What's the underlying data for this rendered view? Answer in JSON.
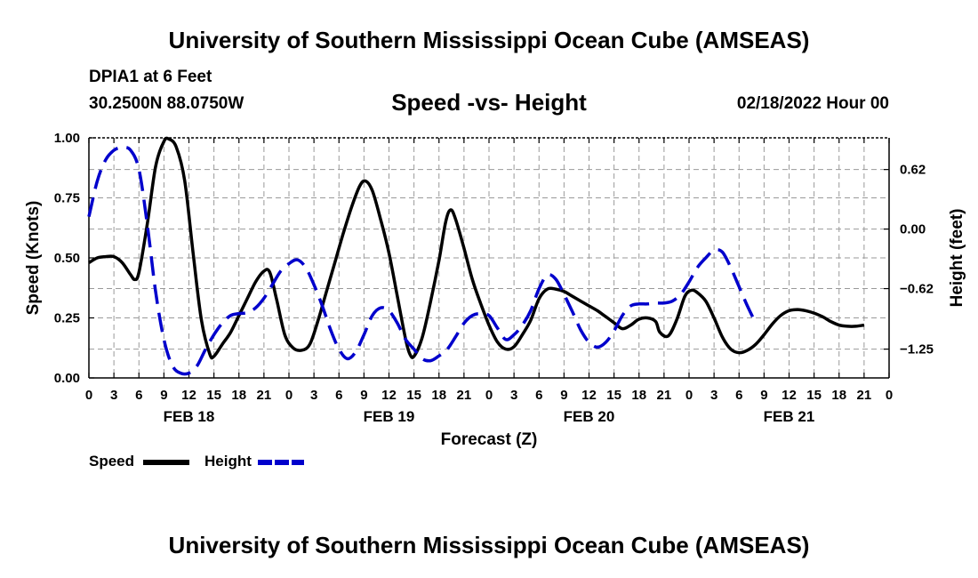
{
  "header": {
    "title": "University of Southern Mississippi Ocean Cube (AMSEAS)",
    "station": "DPIA1 at 6 Feet",
    "coords": "30.2500N  88.0750W",
    "subtitle": "Speed -vs- Height",
    "datetime": "02/18/2022 Hour 00"
  },
  "footer": {
    "title": "University of Southern Mississippi Ocean Cube (AMSEAS)"
  },
  "legend": {
    "speed_label": "Speed",
    "height_label": "Height"
  },
  "chart_data": {
    "type": "line",
    "title": "Speed -vs- Height",
    "xlabel": "Forecast (Z)",
    "ylabel_left": "Speed (Knots)",
    "ylabel_right": "Height (feet)",
    "x_range_hours": [
      0,
      96
    ],
    "x_tick_step_hours": 3,
    "x_tick_labels": [
      "0",
      "3",
      "6",
      "9",
      "12",
      "15",
      "18",
      "21",
      "0",
      "3",
      "6",
      "9",
      "12",
      "15",
      "18",
      "21",
      "0",
      "3",
      "6",
      "9",
      "12",
      "15",
      "18",
      "21",
      "0",
      "3",
      "6",
      "9",
      "12",
      "15",
      "18",
      "21",
      "0"
    ],
    "date_labels": [
      {
        "hour": 12,
        "label": "FEB 18"
      },
      {
        "hour": 36,
        "label": "FEB 19"
      },
      {
        "hour": 60,
        "label": "FEB 20"
      },
      {
        "hour": 84,
        "label": "FEB 21"
      }
    ],
    "y_left": {
      "min": 0,
      "max": 1,
      "ticks": [
        0,
        0.25,
        0.5,
        0.75,
        1.0
      ],
      "tick_labels": [
        "0.00",
        "0.25",
        "0.50",
        "0.75",
        "1.00"
      ]
    },
    "y_right": {
      "min": -1.55,
      "max": 0.95,
      "ticks": [
        -1.25,
        -0.62,
        0.0,
        0.62
      ],
      "tick_labels": [
        "−1.25",
        "−0.62",
        "0.00",
        "0.62"
      ]
    },
    "grid": true,
    "series": [
      {
        "name": "Speed",
        "axis": "left",
        "color": "#000000",
        "style": "solid",
        "points": [
          [
            0,
            0.48
          ],
          [
            1,
            0.5
          ],
          [
            2,
            0.505
          ],
          [
            3,
            0.505
          ],
          [
            4,
            0.48
          ],
          [
            5,
            0.43
          ],
          [
            5.5,
            0.41
          ],
          [
            6,
            0.44
          ],
          [
            7,
            0.64
          ],
          [
            8,
            0.88
          ],
          [
            9,
            0.985
          ],
          [
            9.6,
            0.995
          ],
          [
            10.5,
            0.96
          ],
          [
            11.5,
            0.82
          ],
          [
            12.5,
            0.52
          ],
          [
            13.5,
            0.24
          ],
          [
            14.5,
            0.1
          ],
          [
            15,
            0.09
          ],
          [
            16,
            0.14
          ],
          [
            17,
            0.19
          ],
          [
            18,
            0.26
          ],
          [
            19,
            0.33
          ],
          [
            20,
            0.4
          ],
          [
            21,
            0.445
          ],
          [
            21.7,
            0.44
          ],
          [
            22.5,
            0.33
          ],
          [
            23.5,
            0.18
          ],
          [
            24.5,
            0.125
          ],
          [
            25.5,
            0.115
          ],
          [
            26.5,
            0.14
          ],
          [
            27.5,
            0.24
          ],
          [
            28.5,
            0.36
          ],
          [
            29.5,
            0.48
          ],
          [
            30.5,
            0.6
          ],
          [
            31.5,
            0.71
          ],
          [
            32.5,
            0.8
          ],
          [
            33.2,
            0.82
          ],
          [
            34,
            0.78
          ],
          [
            35,
            0.66
          ],
          [
            36,
            0.52
          ],
          [
            37,
            0.34
          ],
          [
            38,
            0.16
          ],
          [
            38.5,
            0.1
          ],
          [
            39,
            0.09
          ],
          [
            40,
            0.17
          ],
          [
            41,
            0.32
          ],
          [
            42,
            0.49
          ],
          [
            42.8,
            0.65
          ],
          [
            43.4,
            0.7
          ],
          [
            44,
            0.66
          ],
          [
            45,
            0.54
          ],
          [
            46,
            0.41
          ],
          [
            47,
            0.31
          ],
          [
            48,
            0.22
          ],
          [
            49,
            0.15
          ],
          [
            50,
            0.12
          ],
          [
            51,
            0.13
          ],
          [
            52,
            0.18
          ],
          [
            53,
            0.24
          ],
          [
            54,
            0.33
          ],
          [
            55,
            0.37
          ],
          [
            56,
            0.37
          ],
          [
            57,
            0.36
          ],
          [
            58,
            0.34
          ],
          [
            59,
            0.32
          ],
          [
            60,
            0.3
          ],
          [
            61,
            0.28
          ],
          [
            62,
            0.255
          ],
          [
            63,
            0.23
          ],
          [
            64,
            0.205
          ],
          [
            65,
            0.22
          ],
          [
            66,
            0.245
          ],
          [
            67,
            0.25
          ],
          [
            68,
            0.235
          ],
          [
            68.5,
            0.19
          ],
          [
            69.5,
            0.175
          ],
          [
            70.5,
            0.24
          ],
          [
            71.5,
            0.34
          ],
          [
            72.3,
            0.365
          ],
          [
            73,
            0.355
          ],
          [
            74,
            0.32
          ],
          [
            75,
            0.25
          ],
          [
            76,
            0.17
          ],
          [
            77,
            0.12
          ],
          [
            78,
            0.105
          ],
          [
            79,
            0.115
          ],
          [
            80,
            0.14
          ],
          [
            81,
            0.18
          ],
          [
            82,
            0.225
          ],
          [
            83,
            0.26
          ],
          [
            84,
            0.28
          ],
          [
            85,
            0.285
          ],
          [
            86,
            0.28
          ],
          [
            87,
            0.27
          ],
          [
            88,
            0.255
          ],
          [
            89,
            0.235
          ],
          [
            90,
            0.22
          ],
          [
            91,
            0.215
          ],
          [
            92,
            0.215
          ],
          [
            93,
            0.22
          ]
        ]
      },
      {
        "name": "Height",
        "axis": "right",
        "color": "#0000cc",
        "style": "dashed",
        "points": [
          [
            0,
            0.13
          ],
          [
            1,
            0.5
          ],
          [
            2,
            0.72
          ],
          [
            3,
            0.82
          ],
          [
            4,
            0.85
          ],
          [
            5,
            0.82
          ],
          [
            6,
            0.62
          ],
          [
            7,
            0.05
          ],
          [
            8,
            -0.65
          ],
          [
            9,
            -1.15
          ],
          [
            10,
            -1.42
          ],
          [
            11,
            -1.5
          ],
          [
            12,
            -1.5
          ],
          [
            13,
            -1.42
          ],
          [
            14,
            -1.25
          ],
          [
            15,
            -1.1
          ],
          [
            16,
            -0.98
          ],
          [
            17,
            -0.9
          ],
          [
            18,
            -0.88
          ],
          [
            19,
            -0.87
          ],
          [
            20,
            -0.82
          ],
          [
            21,
            -0.72
          ],
          [
            22,
            -0.58
          ],
          [
            23,
            -0.44
          ],
          [
            24,
            -0.36
          ],
          [
            25,
            -0.32
          ],
          [
            26,
            -0.4
          ],
          [
            27,
            -0.58
          ],
          [
            28,
            -0.8
          ],
          [
            29,
            -1.05
          ],
          [
            30,
            -1.25
          ],
          [
            31,
            -1.35
          ],
          [
            32,
            -1.28
          ],
          [
            33,
            -1.1
          ],
          [
            34,
            -0.9
          ],
          [
            35,
            -0.82
          ],
          [
            36,
            -0.85
          ],
          [
            37,
            -0.98
          ],
          [
            38,
            -1.15
          ],
          [
            39,
            -1.25
          ],
          [
            40,
            -1.35
          ],
          [
            41,
            -1.37
          ],
          [
            42,
            -1.32
          ],
          [
            43,
            -1.25
          ],
          [
            44,
            -1.12
          ],
          [
            45,
            -0.98
          ],
          [
            46,
            -0.9
          ],
          [
            47,
            -0.88
          ],
          [
            48,
            -0.9
          ],
          [
            49,
            -1.03
          ],
          [
            50,
            -1.15
          ],
          [
            51,
            -1.1
          ],
          [
            52,
            -1.0
          ],
          [
            53,
            -0.85
          ],
          [
            54,
            -0.62
          ],
          [
            55,
            -0.48
          ],
          [
            56,
            -0.52
          ],
          [
            57,
            -0.68
          ],
          [
            58,
            -0.86
          ],
          [
            59,
            -1.05
          ],
          [
            60,
            -1.18
          ],
          [
            61,
            -1.23
          ],
          [
            62,
            -1.18
          ],
          [
            63,
            -1.06
          ],
          [
            64,
            -0.9
          ],
          [
            65,
            -0.8
          ],
          [
            66,
            -0.78
          ],
          [
            67,
            -0.78
          ],
          [
            68,
            -0.77
          ],
          [
            69,
            -0.77
          ],
          [
            70,
            -0.75
          ],
          [
            71,
            -0.68
          ],
          [
            72,
            -0.55
          ],
          [
            73,
            -0.4
          ],
          [
            74,
            -0.3
          ],
          [
            75,
            -0.22
          ],
          [
            76,
            -0.24
          ],
          [
            77,
            -0.4
          ],
          [
            78,
            -0.6
          ],
          [
            79,
            -0.8
          ],
          [
            80,
            -0.98
          ]
        ]
      }
    ]
  }
}
